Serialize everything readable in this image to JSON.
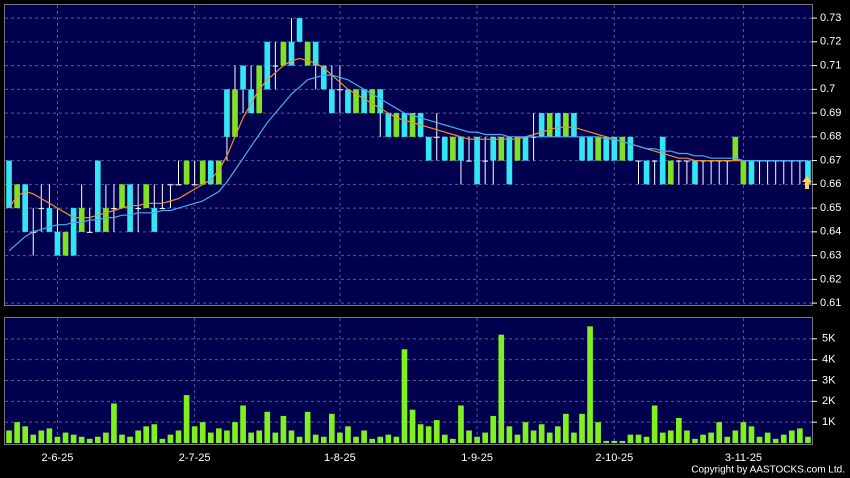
{
  "copyright": "Copyright by AASTOCKS.com Ltd.",
  "chart_data": [
    {
      "type": "candlestick",
      "up_color": "#7fe324",
      "down_color": "#33e6f2",
      "flat_color": "#ffffff",
      "ylim": [
        0.6092,
        0.7355
      ],
      "yticks": [
        0.61,
        0.62,
        0.63,
        0.64,
        0.65,
        0.66,
        0.67,
        0.68,
        0.69,
        0.7,
        0.71,
        0.72,
        0.73
      ],
      "grid": true,
      "categories": [
        null,
        null,
        null,
        null,
        null,
        null,
        "2-6-25",
        null,
        null,
        null,
        null,
        null,
        null,
        null,
        null,
        null,
        null,
        null,
        null,
        null,
        null,
        null,
        null,
        "2-7-25",
        null,
        null,
        null,
        null,
        null,
        null,
        null,
        null,
        null,
        null,
        null,
        null,
        null,
        null,
        null,
        null,
        null,
        "1-8-25",
        null,
        null,
        null,
        null,
        null,
        null,
        null,
        null,
        null,
        null,
        null,
        null,
        null,
        null,
        null,
        null,
        "1-9-25",
        null,
        null,
        null,
        null,
        null,
        null,
        null,
        null,
        null,
        null,
        null,
        null,
        null,
        null,
        null,
        null,
        "2-10-25",
        null,
        null,
        null,
        null,
        null,
        null,
        null,
        null,
        null,
        null,
        null,
        null,
        null,
        null,
        null,
        "3-11-25",
        null,
        null,
        null,
        null,
        null,
        null,
        null,
        null
      ],
      "ohlc": [
        [
          0.67,
          0.67,
          0.65,
          0.65
        ],
        [
          0.65,
          0.66,
          0.65,
          0.66
        ],
        [
          0.66,
          0.66,
          0.64,
          0.64
        ],
        [
          0.64,
          0.65,
          0.63,
          0.64
        ],
        [
          0.65,
          0.66,
          0.64,
          0.65
        ],
        [
          0.65,
          0.66,
          0.64,
          0.64
        ],
        [
          0.64,
          0.65,
          0.63,
          0.63
        ],
        [
          0.63,
          0.64,
          0.63,
          0.64
        ],
        [
          0.65,
          0.65,
          0.63,
          0.63
        ],
        [
          0.64,
          0.66,
          0.64,
          0.65
        ],
        [
          0.64,
          0.65,
          0.64,
          0.64
        ],
        [
          0.67,
          0.67,
          0.64,
          0.64
        ],
        [
          0.64,
          0.66,
          0.64,
          0.65
        ],
        [
          0.65,
          0.66,
          0.64,
          0.65
        ],
        [
          0.65,
          0.66,
          0.65,
          0.66
        ],
        [
          0.66,
          0.66,
          0.64,
          0.64
        ],
        [
          0.65,
          0.66,
          0.64,
          0.65
        ],
        [
          0.65,
          0.66,
          0.65,
          0.66
        ],
        [
          0.65,
          0.66,
          0.64,
          0.64
        ],
        [
          0.65,
          0.66,
          0.65,
          0.65
        ],
        [
          0.66,
          0.66,
          0.65,
          0.66
        ],
        [
          0.66,
          0.67,
          0.66,
          0.66
        ],
        [
          0.66,
          0.67,
          0.66,
          0.67
        ],
        [
          0.66,
          0.67,
          0.66,
          0.66
        ],
        [
          0.66,
          0.67,
          0.66,
          0.67
        ],
        [
          0.67,
          0.67,
          0.66,
          0.66
        ],
        [
          0.66,
          0.67,
          0.66,
          0.67
        ],
        [
          0.7,
          0.7,
          0.67,
          0.68
        ],
        [
          0.68,
          0.71,
          0.68,
          0.7
        ],
        [
          0.71,
          0.71,
          0.69,
          0.7
        ],
        [
          0.7,
          0.71,
          0.69,
          0.69
        ],
        [
          0.69,
          0.71,
          0.69,
          0.71
        ],
        [
          0.72,
          0.72,
          0.7,
          0.7
        ],
        [
          0.71,
          0.72,
          0.7,
          0.71
        ],
        [
          0.71,
          0.72,
          0.71,
          0.72
        ],
        [
          0.72,
          0.73,
          0.71,
          0.71
        ],
        [
          0.73,
          0.73,
          0.72,
          0.72
        ],
        [
          0.71,
          0.72,
          0.71,
          0.72
        ],
        [
          0.72,
          0.72,
          0.7,
          0.71
        ],
        [
          0.71,
          0.71,
          0.7,
          0.7
        ],
        [
          0.7,
          0.71,
          0.69,
          0.69
        ],
        [
          0.7,
          0.71,
          0.69,
          0.7
        ],
        [
          0.7,
          0.7,
          0.69,
          0.69
        ],
        [
          0.69,
          0.7,
          0.69,
          0.7
        ],
        [
          0.7,
          0.7,
          0.69,
          0.69
        ],
        [
          0.69,
          0.7,
          0.69,
          0.7
        ],
        [
          0.7,
          0.7,
          0.68,
          0.69
        ],
        [
          0.69,
          0.69,
          0.68,
          0.68
        ],
        [
          0.68,
          0.69,
          0.68,
          0.69
        ],
        [
          0.69,
          0.69,
          0.68,
          0.68
        ],
        [
          0.68,
          0.69,
          0.68,
          0.69
        ],
        [
          0.69,
          0.69,
          0.68,
          0.68
        ],
        [
          0.68,
          0.68,
          0.67,
          0.67
        ],
        [
          0.68,
          0.69,
          0.67,
          0.68
        ],
        [
          0.68,
          0.68,
          0.67,
          0.67
        ],
        [
          0.67,
          0.68,
          0.67,
          0.68
        ],
        [
          0.68,
          0.68,
          0.66,
          0.67
        ],
        [
          0.67,
          0.68,
          0.67,
          0.67
        ],
        [
          0.68,
          0.68,
          0.66,
          0.66
        ],
        [
          0.67,
          0.68,
          0.66,
          0.67
        ],
        [
          0.68,
          0.68,
          0.66,
          0.67
        ],
        [
          0.67,
          0.68,
          0.67,
          0.68
        ],
        [
          0.68,
          0.68,
          0.66,
          0.66
        ],
        [
          0.67,
          0.68,
          0.67,
          0.68
        ],
        [
          0.68,
          0.68,
          0.67,
          0.67
        ],
        [
          0.68,
          0.69,
          0.67,
          0.68
        ],
        [
          0.69,
          0.69,
          0.68,
          0.68
        ],
        [
          0.68,
          0.69,
          0.68,
          0.69
        ],
        [
          0.69,
          0.69,
          0.68,
          0.68
        ],
        [
          0.68,
          0.69,
          0.68,
          0.69
        ],
        [
          0.69,
          0.69,
          0.68,
          0.68
        ],
        [
          0.68,
          0.68,
          0.67,
          0.67
        ],
        [
          0.68,
          0.68,
          0.67,
          0.67
        ],
        [
          0.67,
          0.68,
          0.67,
          0.68
        ],
        [
          0.68,
          0.68,
          0.67,
          0.67
        ],
        [
          0.68,
          0.68,
          0.67,
          0.67
        ],
        [
          0.67,
          0.68,
          0.67,
          0.68
        ],
        [
          0.68,
          0.68,
          0.67,
          0.67
        ],
        [
          0.67,
          0.67,
          0.66,
          0.67
        ],
        [
          0.67,
          0.67,
          0.66,
          0.66
        ],
        [
          0.67,
          0.67,
          0.66,
          0.67
        ],
        [
          0.68,
          0.68,
          0.66,
          0.66
        ],
        [
          0.66,
          0.67,
          0.66,
          0.67
        ],
        [
          0.67,
          0.67,
          0.66,
          0.67
        ],
        [
          0.67,
          0.67,
          0.66,
          0.67
        ],
        [
          0.67,
          0.67,
          0.66,
          0.66
        ],
        [
          0.67,
          0.67,
          0.66,
          0.67
        ],
        [
          0.67,
          0.67,
          0.66,
          0.67
        ],
        [
          0.67,
          0.67,
          0.66,
          0.67
        ],
        [
          0.67,
          0.67,
          0.66,
          0.67
        ],
        [
          0.67,
          0.68,
          0.67,
          0.68
        ],
        [
          0.66,
          0.67,
          0.66,
          0.67
        ],
        [
          0.67,
          0.67,
          0.66,
          0.66
        ],
        [
          0.67,
          0.67,
          0.66,
          0.67
        ],
        [
          0.67,
          0.67,
          0.66,
          0.67
        ],
        [
          0.67,
          0.67,
          0.66,
          0.67
        ],
        [
          0.67,
          0.67,
          0.66,
          0.67
        ],
        [
          0.67,
          0.67,
          0.66,
          0.67
        ],
        [
          0.67,
          0.67,
          0.66,
          0.67
        ],
        [
          0.67,
          0.67,
          0.66,
          0.66
        ]
      ],
      "series": [
        {
          "color": "#f0902c",
          "values": [
            0.65,
            0.655,
            0.657,
            0.656,
            0.654,
            0.652,
            0.65,
            0.648,
            0.646,
            0.646,
            0.646,
            0.647,
            0.648,
            0.649,
            0.65,
            0.651,
            0.651,
            0.652,
            0.652,
            0.652,
            0.653,
            0.654,
            0.656,
            0.658,
            0.66,
            0.662,
            0.666,
            0.672,
            0.68,
            0.688,
            0.694,
            0.7,
            0.704,
            0.707,
            0.71,
            0.712,
            0.713,
            0.712,
            0.711,
            0.709,
            0.706,
            0.703,
            0.7,
            0.698,
            0.696,
            0.694,
            0.692,
            0.69,
            0.688,
            0.687,
            0.686,
            0.685,
            0.684,
            0.683,
            0.682,
            0.681,
            0.68,
            0.679,
            0.679,
            0.679,
            0.679,
            0.679,
            0.679,
            0.679,
            0.68,
            0.681,
            0.682,
            0.683,
            0.684,
            0.684,
            0.684,
            0.683,
            0.682,
            0.681,
            0.68,
            0.679,
            0.678,
            0.677,
            0.676,
            0.675,
            0.674,
            0.673,
            0.672,
            0.671,
            0.671,
            0.67,
            0.67,
            0.67,
            0.67,
            0.67,
            0.67,
            0.67,
            0.67,
            0.67,
            0.67,
            0.67,
            0.67,
            0.67,
            0.67,
            0.67
          ]
        },
        {
          "color": "#4aaaf2",
          "values": [
            0.632,
            0.635,
            0.638,
            0.64,
            0.641,
            0.642,
            0.643,
            0.643,
            0.644,
            0.644,
            0.645,
            0.645,
            0.646,
            0.646,
            0.647,
            0.647,
            0.648,
            0.648,
            0.648,
            0.649,
            0.649,
            0.65,
            0.651,
            0.652,
            0.653,
            0.655,
            0.657,
            0.661,
            0.666,
            0.671,
            0.676,
            0.681,
            0.686,
            0.69,
            0.694,
            0.698,
            0.701,
            0.704,
            0.705,
            0.706,
            0.706,
            0.705,
            0.704,
            0.702,
            0.7,
            0.698,
            0.696,
            0.694,
            0.692,
            0.69,
            0.689,
            0.688,
            0.687,
            0.686,
            0.685,
            0.684,
            0.683,
            0.682,
            0.682,
            0.681,
            0.681,
            0.681,
            0.68,
            0.68,
            0.68,
            0.68,
            0.68,
            0.68,
            0.68,
            0.68,
            0.68,
            0.68,
            0.68,
            0.68,
            0.679,
            0.679,
            0.678,
            0.677,
            0.676,
            0.675,
            0.675,
            0.674,
            0.674,
            0.673,
            0.673,
            0.672,
            0.672,
            0.671,
            0.671,
            0.671,
            0.671,
            0.67,
            0.67,
            0.67,
            0.67,
            0.67,
            0.67,
            0.67,
            0.67,
            0.67
          ]
        }
      ]
    },
    {
      "type": "bar",
      "color": "#80f020",
      "ylim": [
        0,
        6000
      ],
      "grid": true,
      "yticks": [
        {
          "value": 1000,
          "label": "1K"
        },
        {
          "value": 2000,
          "label": "2K"
        },
        {
          "value": 3000,
          "label": "3K"
        },
        {
          "value": 4000,
          "label": "4K"
        },
        {
          "value": 5000,
          "label": "5K"
        }
      ],
      "values": [
        600,
        1000,
        800,
        400,
        600,
        700,
        300,
        500,
        400,
        300,
        200,
        300,
        500,
        1900,
        400,
        300,
        600,
        800,
        900,
        200,
        400,
        600,
        2300,
        800,
        1000,
        500,
        700,
        600,
        1000,
        1800,
        500,
        600,
        1500,
        500,
        1300,
        600,
        300,
        1500,
        400,
        300,
        1400,
        500,
        800,
        300,
        600,
        200,
        300,
        400,
        300,
        4500,
        1600,
        900,
        800,
        1100,
        400,
        200,
        1800,
        600,
        300,
        500,
        1300,
        5200,
        800,
        400,
        1000,
        600,
        900,
        500,
        800,
        1400,
        500,
        1400,
        5600,
        1000,
        100,
        100,
        100,
        400,
        400,
        300,
        1800,
        500,
        600,
        1200,
        600,
        200,
        400,
        500,
        1000,
        300,
        600,
        1000,
        800,
        300,
        500,
        200,
        400,
        600,
        700,
        300
      ]
    }
  ]
}
